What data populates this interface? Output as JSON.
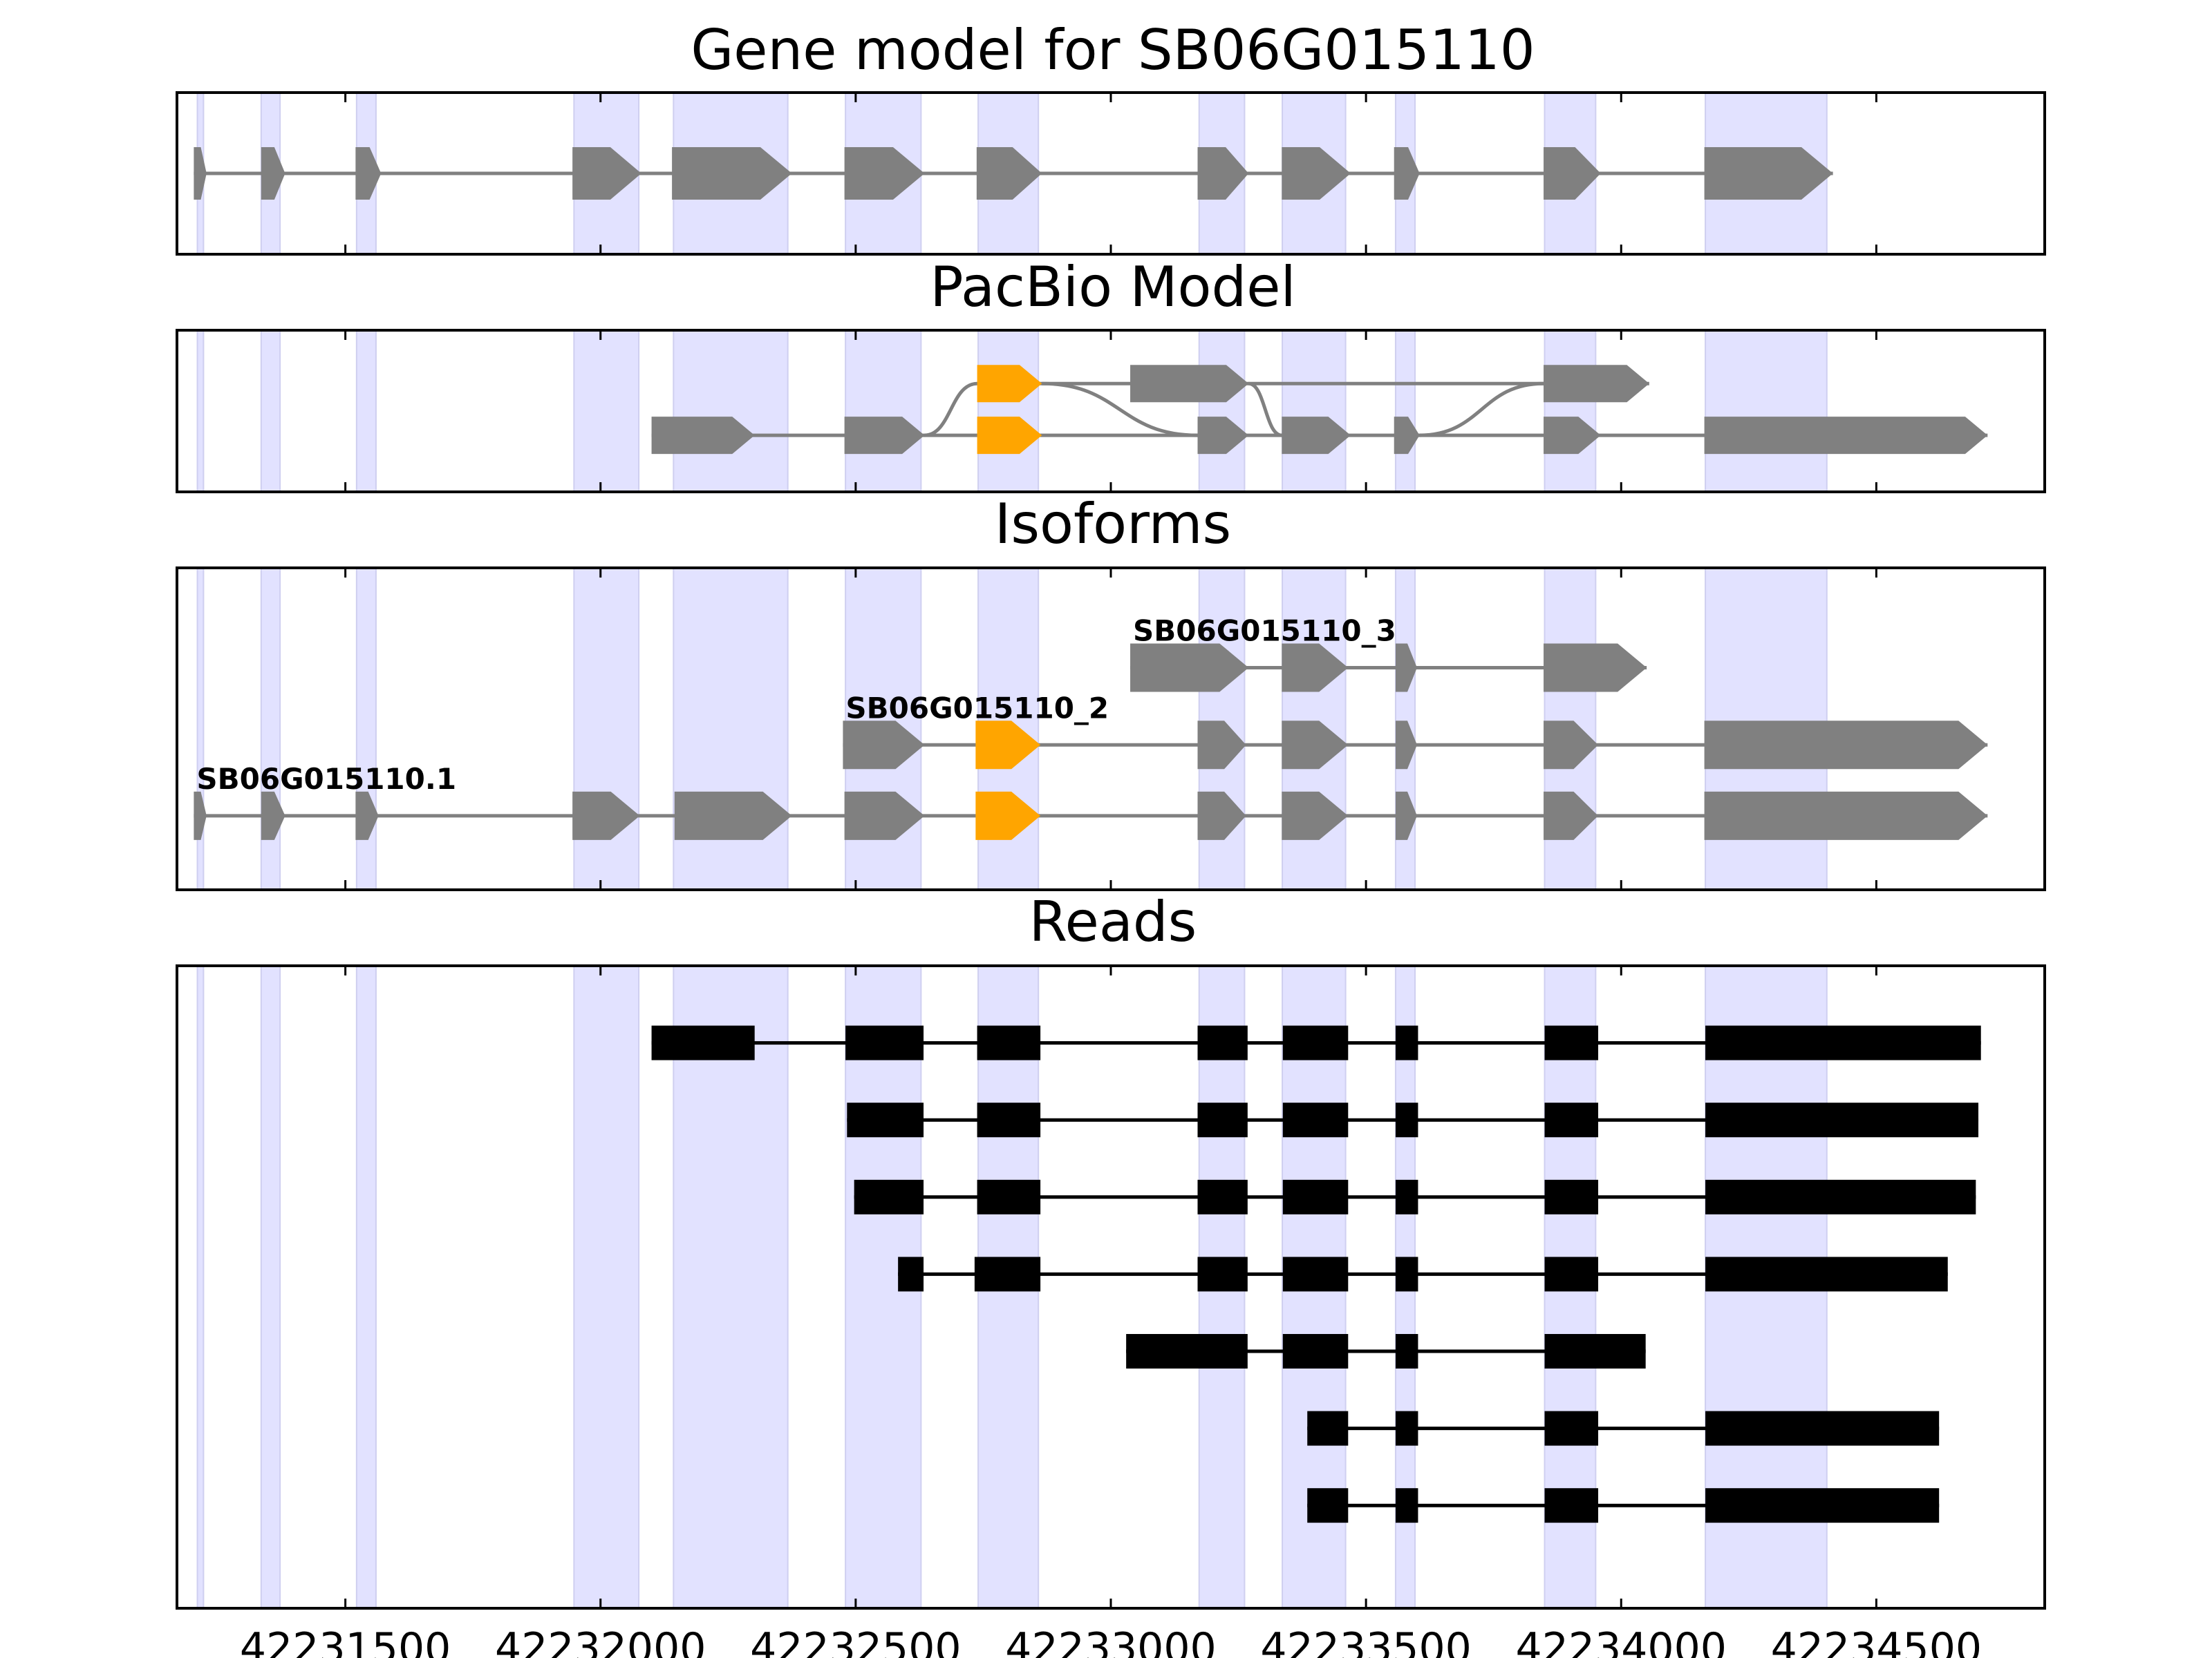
{
  "chart_data": {
    "type": "gene-track",
    "xaxis": {
      "range": [
        42231170,
        42234830
      ],
      "ticks": [
        {
          "value": 42231500,
          "label": "42231500"
        },
        {
          "value": 42232000,
          "label": "42232000"
        },
        {
          "value": 42232500,
          "label": "42232500"
        },
        {
          "value": 42233000,
          "label": "42233000"
        },
        {
          "value": 42233500,
          "label": "42233500"
        },
        {
          "value": 42234000,
          "label": "42234000"
        },
        {
          "value": 42234500,
          "label": "42234500"
        }
      ]
    },
    "colors": {
      "exon": "#808080",
      "highlight": "#FFA500",
      "read": "#000000",
      "shade": "#E2E2FF",
      "intron_gene": "#808080",
      "intron_read": "#000000"
    },
    "shaded_regions": [
      [
        42231210,
        42231222
      ],
      [
        42231335,
        42231372
      ],
      [
        42231522,
        42231560
      ],
      [
        42231948,
        42232075
      ],
      [
        42232143,
        42232367
      ],
      [
        42232480,
        42232628
      ],
      [
        42232740,
        42232858
      ],
      [
        42233173,
        42233262
      ],
      [
        42233336,
        42233460
      ],
      [
        42233558,
        42233596
      ],
      [
        42233850,
        42233950
      ],
      [
        42234165,
        42234403
      ]
    ],
    "panels": [
      {
        "title": "Gene model for SB06G015110",
        "tracks": [
          {
            "y": 0.5,
            "exons": [
              [
                42231203,
                42231228,
                "exon"
              ],
              [
                42231335,
                42231382,
                "exon"
              ],
              [
                42231520,
                42231570,
                "exon"
              ],
              [
                42231945,
                42232080,
                "exon"
              ],
              [
                42232140,
                42232375,
                "exon"
              ],
              [
                42232478,
                42232635,
                "exon"
              ],
              [
                42232737,
                42232865,
                "exon"
              ],
              [
                42233170,
                42233270,
                "exon"
              ],
              [
                42233335,
                42233470,
                "exon"
              ],
              [
                42233555,
                42233605,
                "exon"
              ],
              [
                42233848,
                42233960,
                "exon"
              ],
              [
                42234163,
                42234415,
                "exon"
              ]
            ]
          }
        ]
      },
      {
        "title": "PacBio Model",
        "tracks": [
          {
            "y": 0.33,
            "exons": [
              [
                42232738,
                42232865,
                "highlight"
              ],
              [
                42233038,
                42233270,
                "exon"
              ],
              [
                42233848,
                42234055,
                "exon"
              ]
            ]
          },
          {
            "y": 0.65,
            "exons": [
              [
                42232100,
                42232302,
                "exon"
              ],
              [
                42232478,
                42232635,
                "exon"
              ],
              [
                42232738,
                42232865,
                "highlight"
              ],
              [
                42233170,
                42233270,
                "exon"
              ],
              [
                42233335,
                42233470,
                "exon"
              ],
              [
                42233555,
                42233605,
                "exon"
              ],
              [
                42233848,
                42233960,
                "exon"
              ],
              [
                42234163,
                42234718,
                "exon"
              ]
            ]
          }
        ],
        "connectors": [
          {
            "from": [
              42232635,
              0.65
            ],
            "to": [
              42232738,
              0.33
            ]
          },
          {
            "from": [
              42232865,
              0.33
            ],
            "to": [
              42233170,
              0.65
            ]
          },
          {
            "from": [
              42233270,
              0.33
            ],
            "to": [
              42233335,
              0.65
            ]
          },
          {
            "from": [
              42233605,
              0.65
            ],
            "to": [
              42233848,
              0.33
            ]
          }
        ]
      },
      {
        "title": "Isoforms",
        "tracks": [
          {
            "name": "SB06G015110_3",
            "y": 0.31,
            "exons": [
              [
                42233038,
                42233270,
                "exon"
              ],
              [
                42233335,
                42233465,
                "exon"
              ],
              [
                42233558,
                42233600,
                "exon"
              ],
              [
                42233848,
                42234050,
                "exon"
              ]
            ]
          },
          {
            "name": "SB06G015110_2",
            "y": 0.55,
            "exons": [
              [
                42232475,
                42232635,
                "exon"
              ],
              [
                42232735,
                42232862,
                "highlight"
              ],
              [
                42233170,
                42233265,
                "exon"
              ],
              [
                42233335,
                42233465,
                "exon"
              ],
              [
                42233558,
                42233600,
                "exon"
              ],
              [
                42233848,
                42233955,
                "exon"
              ],
              [
                42234163,
                42234718,
                "exon"
              ]
            ]
          },
          {
            "name": "SB06G015110.1",
            "y": 0.77,
            "exons": [
              [
                42231203,
                42231228,
                "exon"
              ],
              [
                42231335,
                42231382,
                "exon"
              ],
              [
                42231520,
                42231565,
                "exon"
              ],
              [
                42231945,
                42232077,
                "exon"
              ],
              [
                42232145,
                42232375,
                "exon"
              ],
              [
                42232478,
                42232635,
                "exon"
              ],
              [
                42232735,
                42232862,
                "highlight"
              ],
              [
                42233170,
                42233265,
                "exon"
              ],
              [
                42233335,
                42233465,
                "exon"
              ],
              [
                42233558,
                42233600,
                "exon"
              ],
              [
                42233848,
                42233955,
                "exon"
              ],
              [
                42234163,
                42234718,
                "exon"
              ]
            ]
          }
        ]
      },
      {
        "title": "Reads",
        "reads": [
          {
            "y": 0.12,
            "blocks": [
              [
                42232100,
                42232302
              ],
              [
                42232480,
                42232633
              ],
              [
                42232738,
                42232862
              ],
              [
                42233170,
                42233268
              ],
              [
                42233337,
                42233465
              ],
              [
                42233558,
                42233602
              ],
              [
                42233850,
                42233955
              ],
              [
                42234165,
                42234705
              ]
            ]
          },
          {
            "y": 0.24,
            "blocks": [
              [
                42232483,
                42232633
              ],
              [
                42232738,
                42232862
              ],
              [
                42233170,
                42233268
              ],
              [
                42233337,
                42233465
              ],
              [
                42233558,
                42233602
              ],
              [
                42233850,
                42233955
              ],
              [
                42234165,
                42234700
              ]
            ]
          },
          {
            "y": 0.36,
            "blocks": [
              [
                42232497,
                42232633
              ],
              [
                42232738,
                42232862
              ],
              [
                42233170,
                42233268
              ],
              [
                42233337,
                42233465
              ],
              [
                42233558,
                42233602
              ],
              [
                42233850,
                42233955
              ],
              [
                42234165,
                42234695
              ]
            ]
          },
          {
            "y": 0.48,
            "blocks": [
              [
                42232583,
                42232633
              ],
              [
                42232733,
                42232862
              ],
              [
                42233170,
                42233268
              ],
              [
                42233337,
                42233465
              ],
              [
                42233558,
                42233602
              ],
              [
                42233850,
                42233955
              ],
              [
                42234165,
                42234640
              ]
            ]
          },
          {
            "y": 0.6,
            "blocks": [
              [
                42233030,
                42233268
              ],
              [
                42233337,
                42233465
              ],
              [
                42233558,
                42233602
              ],
              [
                42233850,
                42234048
              ]
            ]
          },
          {
            "y": 0.72,
            "blocks": [
              [
                42233385,
                42233465
              ],
              [
                42233558,
                42233602
              ],
              [
                42233850,
                42233955
              ],
              [
                42234165,
                42234623
              ]
            ]
          },
          {
            "y": 0.84,
            "blocks": [
              [
                42233385,
                42233465
              ],
              [
                42233558,
                42233602
              ],
              [
                42233850,
                42233955
              ],
              [
                42234165,
                42234623
              ]
            ]
          }
        ]
      }
    ]
  }
}
